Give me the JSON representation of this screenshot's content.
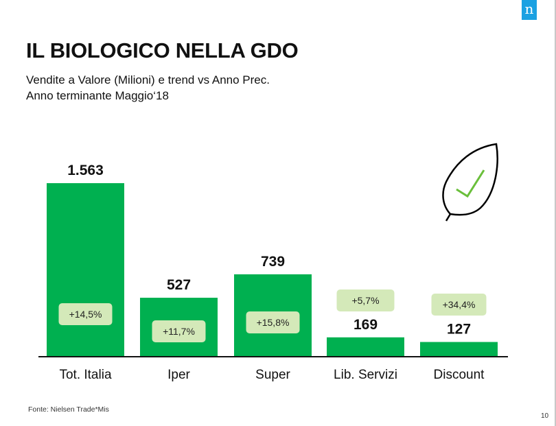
{
  "header": {
    "title": "IL BIOLOGICO NELLA GDO",
    "subtitle_line1": "Vendite a Valore (Milioni) e trend vs Anno Prec.",
    "subtitle_line2": "Anno terminante Maggio‘18",
    "logo_text": "n"
  },
  "footer": {
    "source": "Fonte: Nielsen Trade*Mis",
    "page_number": "10"
  },
  "icons": {
    "leaf": "leaf-check-icon",
    "logo": "nielsen-logo"
  },
  "colors": {
    "bar": "#00b050",
    "badge": "#d4e9b9",
    "check": "#6abf3b",
    "logo": "#1ba1e2"
  },
  "chart_data": {
    "type": "bar",
    "title": "Vendite a Valore (Milioni) e trend vs Anno Prec.",
    "categories": [
      "Tot. Italia",
      "Iper",
      "Super",
      "Lib. Servizi",
      "Discount"
    ],
    "values": [
      1563,
      527,
      739,
      169,
      127
    ],
    "value_labels": [
      "1.563",
      "527",
      "739",
      "169",
      "127"
    ],
    "trend_labels": [
      "+14,5%",
      "+11,7%",
      "+15,8%",
      "+5,7%",
      "+34,4%"
    ],
    "trend": [
      14.5,
      11.7,
      15.8,
      5.7,
      34.4
    ],
    "xlabel": "",
    "ylabel": "",
    "ylim": [
      0,
      1563
    ],
    "grid": false
  }
}
